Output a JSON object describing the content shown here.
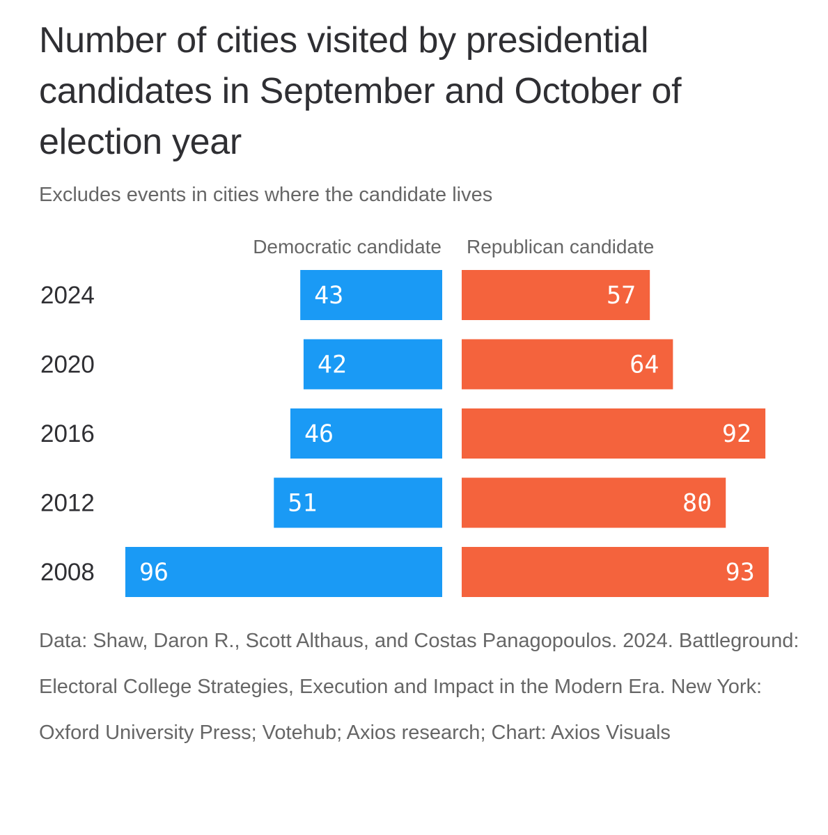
{
  "header": {
    "title": "Number of cities visited by presidential candidates in September and October of election year",
    "subtitle": "Excludes events in cities where the candidate lives"
  },
  "chart_data": {
    "type": "bar",
    "orientation": "horizontal-diverging",
    "title": "Number of cities visited by presidential candidates in September and October of election year",
    "subtitle": "Excludes events in cities where the candidate lives",
    "categories": [
      "2024",
      "2020",
      "2016",
      "2012",
      "2008"
    ],
    "series": [
      {
        "name": "Democratic candidate",
        "color": "#1a9af5",
        "values": [
          43,
          42,
          46,
          51,
          96
        ]
      },
      {
        "name": "Republican candidate",
        "color": "#f4633d",
        "values": [
          57,
          64,
          92,
          80,
          93
        ]
      }
    ],
    "xlabel": "",
    "ylabel": ""
  },
  "footer": {
    "source": "Data: Shaw, Daron R., Scott Althaus, and Costas Panagopoulos. 2024. Battleground: Electoral College Strategies, Execution and Impact in the Modern Era. New York: Oxford University Press; Votehub; Axios research; Chart: Axios Visuals"
  }
}
